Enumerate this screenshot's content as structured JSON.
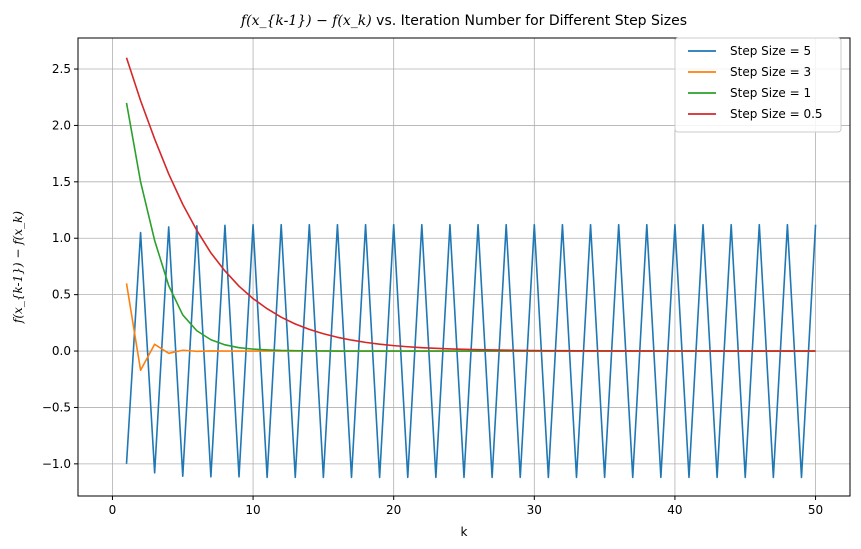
{
  "chart_data": {
    "type": "line",
    "title_math": "f(x_{k-1}) − f(x_k)",
    "title_text": " vs. Iteration Number for Different Step Sizes",
    "xlabel": "k",
    "ylabel_math": "f(x_{k-1}) − f(x_k)",
    "xlim": [
      -2.45,
      52.45
    ],
    "ylim": [
      -1.285,
      2.775
    ],
    "xticks": [
      0,
      10,
      20,
      30,
      40,
      50
    ],
    "xtick_labels": [
      "0",
      "10",
      "20",
      "30",
      "40",
      "50"
    ],
    "yticks": [
      -1.0,
      -0.5,
      0.0,
      0.5,
      1.0,
      1.5,
      2.0,
      2.5
    ],
    "ytick_labels": [
      "−1.0",
      "−0.5",
      "0.0",
      "0.5",
      "1.0",
      "1.5",
      "2.0",
      "2.5"
    ],
    "grid": true,
    "legend_position": "top-right",
    "x": [
      1,
      2,
      3,
      4,
      5,
      6,
      7,
      8,
      9,
      10,
      11,
      12,
      13,
      14,
      15,
      16,
      17,
      18,
      19,
      20,
      21,
      22,
      23,
      24,
      25,
      26,
      27,
      28,
      29,
      30,
      31,
      32,
      33,
      34,
      35,
      36,
      37,
      38,
      39,
      40,
      41,
      42,
      43,
      44,
      45,
      46,
      47,
      48,
      49,
      50
    ],
    "series": [
      {
        "name": "Step Size = 5",
        "color": "#1f77b4",
        "values": [
          -1.0,
          1.05,
          -1.08,
          1.1,
          -1.11,
          1.11,
          -1.115,
          1.115,
          -1.115,
          1.12,
          -1.12,
          1.12,
          -1.12,
          1.12,
          -1.12,
          1.12,
          -1.12,
          1.12,
          -1.12,
          1.12,
          -1.12,
          1.12,
          -1.12,
          1.12,
          -1.12,
          1.12,
          -1.12,
          1.12,
          -1.12,
          1.12,
          -1.12,
          1.12,
          -1.12,
          1.12,
          -1.12,
          1.12,
          -1.12,
          1.12,
          -1.12,
          1.12,
          -1.12,
          1.12,
          -1.12,
          1.12,
          -1.12,
          1.12,
          -1.12,
          1.12,
          -1.12,
          1.12
        ]
      },
      {
        "name": "Step Size = 3",
        "color": "#ff7f0e",
        "values": [
          0.6,
          -0.17,
          0.06,
          -0.02,
          0.007,
          -0.002,
          0.001,
          0,
          0,
          0,
          0,
          0,
          0,
          0,
          0,
          0,
          0,
          0,
          0,
          0,
          0,
          0,
          0,
          0,
          0,
          0,
          0,
          0,
          0,
          0,
          0,
          0,
          0,
          0,
          0,
          0,
          0,
          0,
          0,
          0,
          0,
          0,
          0,
          0,
          0,
          0,
          0,
          0,
          0,
          0
        ]
      },
      {
        "name": "Step Size = 1",
        "color": "#2ca02c",
        "values": [
          2.2,
          1.5,
          0.98,
          0.58,
          0.32,
          0.18,
          0.1,
          0.055,
          0.03,
          0.017,
          0.01,
          0.005,
          0.003,
          0.0015,
          0.001,
          0,
          0,
          0,
          0,
          0,
          0,
          0,
          0,
          0,
          0,
          0,
          0,
          0,
          0,
          0,
          0,
          0,
          0,
          0,
          0,
          0,
          0,
          0,
          0,
          0,
          0,
          0,
          0,
          0,
          0,
          0,
          0,
          0,
          0,
          0
        ]
      },
      {
        "name": "Step Size = 0.5",
        "color": "#d62728",
        "values": [
          2.6,
          2.22,
          1.88,
          1.57,
          1.3,
          1.07,
          0.87,
          0.71,
          0.575,
          0.465,
          0.375,
          0.3,
          0.24,
          0.192,
          0.153,
          0.122,
          0.097,
          0.077,
          0.061,
          0.048,
          0.038,
          0.03,
          0.024,
          0.019,
          0.015,
          0.012,
          0.0095,
          0.0075,
          0.006,
          0.0047,
          0.0037,
          0.0029,
          0.0023,
          0.0018,
          0.0014,
          0.0011,
          0.0009,
          0.0007,
          0.0005,
          0.0004,
          0.0003,
          0.0003,
          0.0002,
          0.0002,
          0.0001,
          0.0001,
          0.0001,
          0.0001,
          0,
          0
        ]
      }
    ]
  }
}
